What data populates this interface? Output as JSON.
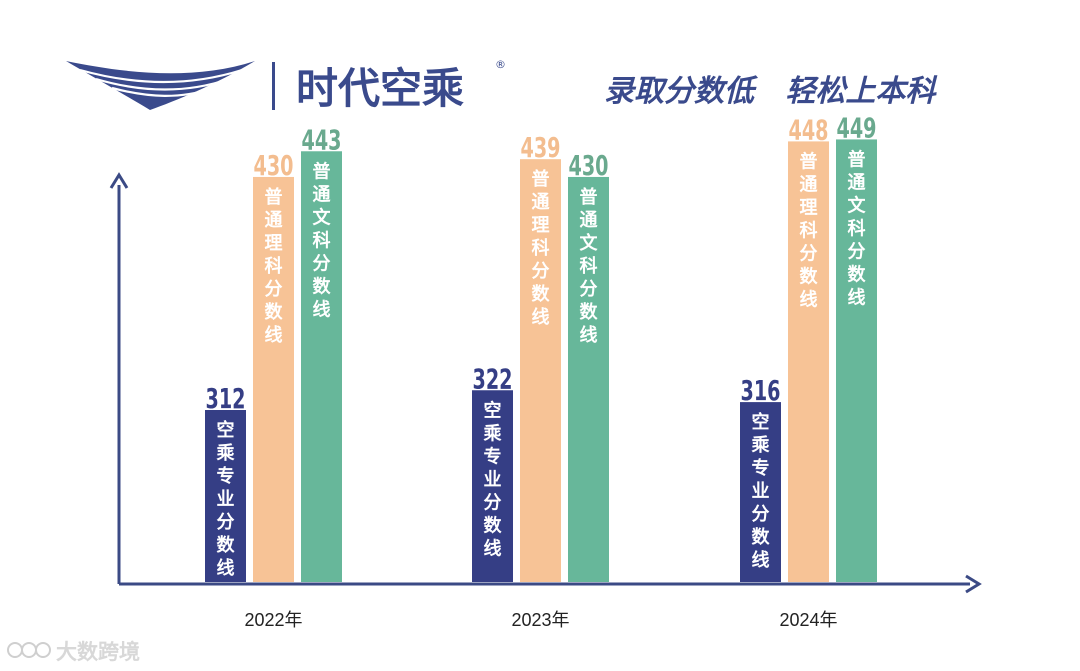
{
  "brand": {
    "name": "时代空乘",
    "registered_mark": "®",
    "logo_icon": "wing-icon",
    "color": "#3a4a8c"
  },
  "slogan": "录取分数低   轻松上本科",
  "watermark": "大数跨境",
  "colors": {
    "navy": "#353e85",
    "orange": "#f7c396",
    "teal": "#67b79a",
    "axis": "#3b4a85",
    "text": "#222222",
    "orange_text": "#f3bd8f",
    "teal_text": "#6aa98e"
  },
  "chart_data": {
    "type": "bar",
    "categories": [
      "2022年",
      "2023年",
      "2024年"
    ],
    "series": [
      {
        "name": "空乘专业分数线",
        "values": [
          312,
          322,
          316
        ],
        "color": "#353e85"
      },
      {
        "name": "普通理科分数线",
        "values": [
          430,
          439,
          448
        ],
        "color": "#f7c396"
      },
      {
        "name": "普通文科分数线",
        "values": [
          443,
          430,
          449
        ],
        "color": "#67b79a"
      }
    ],
    "title": "",
    "xlabel": "",
    "ylabel": ""
  }
}
